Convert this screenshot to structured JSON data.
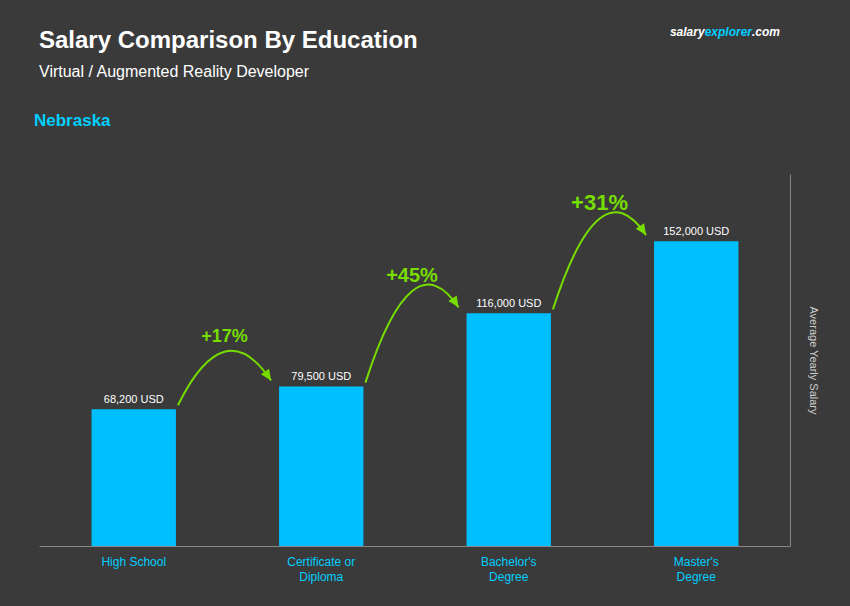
{
  "chart_data": {
    "type": "bar",
    "title": "Salary Comparison By Education",
    "subtitle": "Virtual / Augmented Reality Developer",
    "location": "Nebraska",
    "brand": [
      "salary",
      "explorer",
      ".com"
    ],
    "categories": [
      "High School",
      "Certificate or\nDiploma",
      "Bachelor's\nDegree",
      "Master's\nDegree"
    ],
    "values": [
      68200,
      79500,
      116000,
      152000
    ],
    "value_labels": [
      "68,200 USD",
      "79,500 USD",
      "116,000 USD",
      "152,000 USD"
    ],
    "data_labels": true,
    "color": "#00BFFF",
    "annotations": [
      {
        "text": "+17%",
        "from": 0,
        "to": 1,
        "color": "#77dd00"
      },
      {
        "text": "+45%",
        "from": 1,
        "to": 2,
        "color": "#77dd00"
      },
      {
        "text": "+31%",
        "from": 2,
        "to": 3,
        "color": "#77dd00"
      }
    ],
    "ylabel": "Average Yearly Salary",
    "ylim": [
      0,
      185000
    ],
    "grid": false,
    "tick_labels": "x"
  }
}
